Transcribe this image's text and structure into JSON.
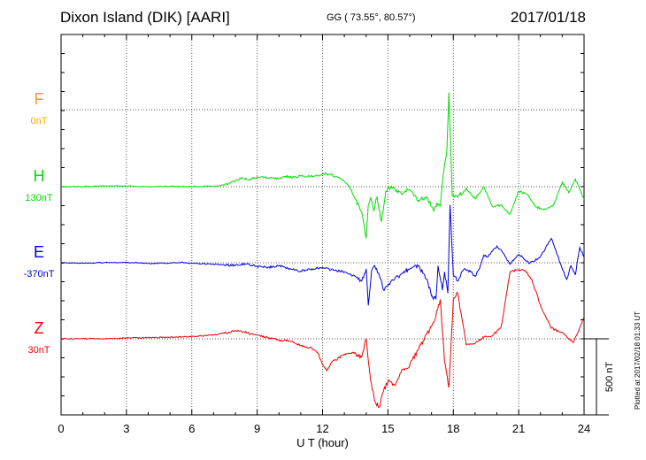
{
  "header": {
    "title": "Dixon Island (DIK)  [AARI]",
    "coordinates": "GG ( 73.55°,  80.57°)",
    "date": "2017/01/18"
  },
  "footer": {
    "plotted": "Plotted at 2017/02/18 01:33 UT"
  },
  "chart_data": {
    "type": "line",
    "xlabel": "U T (hour)",
    "xlim": [
      0,
      24
    ],
    "x_ticks": [
      "0",
      "3",
      "6",
      "9",
      "12",
      "15",
      "18",
      "21",
      "24"
    ],
    "grid": true,
    "scale_bar": {
      "label": "500 nT",
      "value_nT": 500
    },
    "series": [
      {
        "name": "F",
        "baseline_label": "0nT",
        "color": "#FFA500",
        "values": []
      },
      {
        "name": "H",
        "baseline_label": "130nT",
        "color": "#00DD00",
        "x": [
          0,
          1,
          2,
          3,
          4,
          5,
          6,
          7,
          7.5,
          8,
          8.3,
          8.6,
          9,
          9.5,
          10,
          10.3,
          10.7,
          11,
          11.4,
          11.8,
          12,
          12.4,
          12.8,
          13.2,
          13.5,
          13.8,
          14,
          14.1,
          14.2,
          14.35,
          14.5,
          14.7,
          14.9,
          15,
          15.2,
          15.6,
          16,
          16.4,
          16.8,
          17.1,
          17.25,
          17.4,
          17.55,
          17.7,
          17.8,
          17.95,
          18.2,
          18.6,
          19,
          19.4,
          19.8,
          20.2,
          20.6,
          21,
          21.4,
          21.8,
          22.2,
          22.6,
          23,
          23.3,
          23.6,
          24
        ],
        "values": [
          0,
          1,
          5,
          4,
          0,
          2,
          0,
          3,
          10,
          38,
          60,
          42,
          65,
          58,
          53,
          68,
          62,
          70,
          68,
          72,
          85,
          78,
          55,
          10,
          -80,
          -170,
          -340,
          -120,
          -70,
          -160,
          -70,
          -230,
          -30,
          -5,
          -10,
          -40,
          -20,
          -90,
          -70,
          -160,
          -110,
          -130,
          90,
          230,
          620,
          -60,
          -70,
          -10,
          -80,
          0,
          -130,
          -120,
          -180,
          -30,
          -50,
          -135,
          -150,
          -120,
          30,
          -40,
          50,
          -80
        ]
      },
      {
        "name": "E",
        "baseline_label": "-370nT",
        "color": "#0000DD",
        "x": [
          0,
          1,
          2,
          3,
          4,
          5,
          5.5,
          6,
          7,
          8,
          8.5,
          9,
          9.5,
          10,
          10.5,
          11,
          11.5,
          12,
          12.5,
          13,
          13.5,
          13.8,
          14,
          14.1,
          14.25,
          14.4,
          14.6,
          14.8,
          15,
          15.3,
          15.6,
          16,
          16.4,
          16.8,
          17,
          17.2,
          17.3,
          17.5,
          17.6,
          17.75,
          17.85,
          18,
          18.2,
          18.5,
          18.8,
          19,
          19.2,
          19.4,
          19.6,
          20,
          20.3,
          20.6,
          21,
          21.5,
          22,
          22.5,
          23,
          23.2,
          23.4,
          23.6,
          23.8,
          24
        ],
        "values": [
          0,
          -3,
          1,
          2,
          -4,
          -2,
          3,
          -3,
          -10,
          -18,
          -8,
          -25,
          -30,
          -20,
          -38,
          -55,
          -40,
          -30,
          -48,
          -60,
          -90,
          -120,
          -40,
          -280,
          -50,
          -20,
          -80,
          -180,
          -150,
          -110,
          -75,
          -40,
          -22,
          -110,
          -220,
          -240,
          -20,
          -180,
          -60,
          -200,
          380,
          -80,
          -120,
          -40,
          -60,
          -90,
          -40,
          50,
          40,
          110,
          60,
          -10,
          55,
          -5,
          40,
          160,
          -40,
          -110,
          -20,
          -80,
          100,
          40
        ]
      },
      {
        "name": "Z",
        "baseline_label": "30nT",
        "color": "#EE0000",
        "x": [
          0,
          1,
          2,
          3,
          4,
          5,
          6,
          7,
          7.5,
          8,
          8.4,
          8.8,
          9,
          9.5,
          10,
          10.5,
          11,
          11.5,
          11.8,
          12,
          12.2,
          12.4,
          12.6,
          13,
          13.4,
          13.8,
          14,
          14.2,
          14.4,
          14.6,
          14.8,
          15,
          15.3,
          15.6,
          16,
          16.5,
          17,
          17.2,
          17.4,
          17.6,
          17.8,
          18,
          18.2,
          18.6,
          19,
          19.4,
          19.8,
          20.2,
          20.6,
          21,
          21.3,
          21.6,
          22,
          22.5,
          23,
          23.5,
          24
        ],
        "values": [
          0,
          2,
          0,
          5,
          8,
          10,
          15,
          25,
          38,
          52,
          45,
          30,
          25,
          5,
          -10,
          -15,
          -45,
          -60,
          -95,
          -170,
          -210,
          -155,
          -140,
          -100,
          -90,
          -120,
          0,
          -270,
          -410,
          -450,
          -340,
          -280,
          -305,
          -220,
          -175,
          -40,
          80,
          150,
          260,
          -150,
          -320,
          260,
          300,
          -40,
          -30,
          10,
          20,
          80,
          440,
          455,
          450,
          390,
          220,
          70,
          40,
          -25,
          140
        ]
      }
    ]
  }
}
